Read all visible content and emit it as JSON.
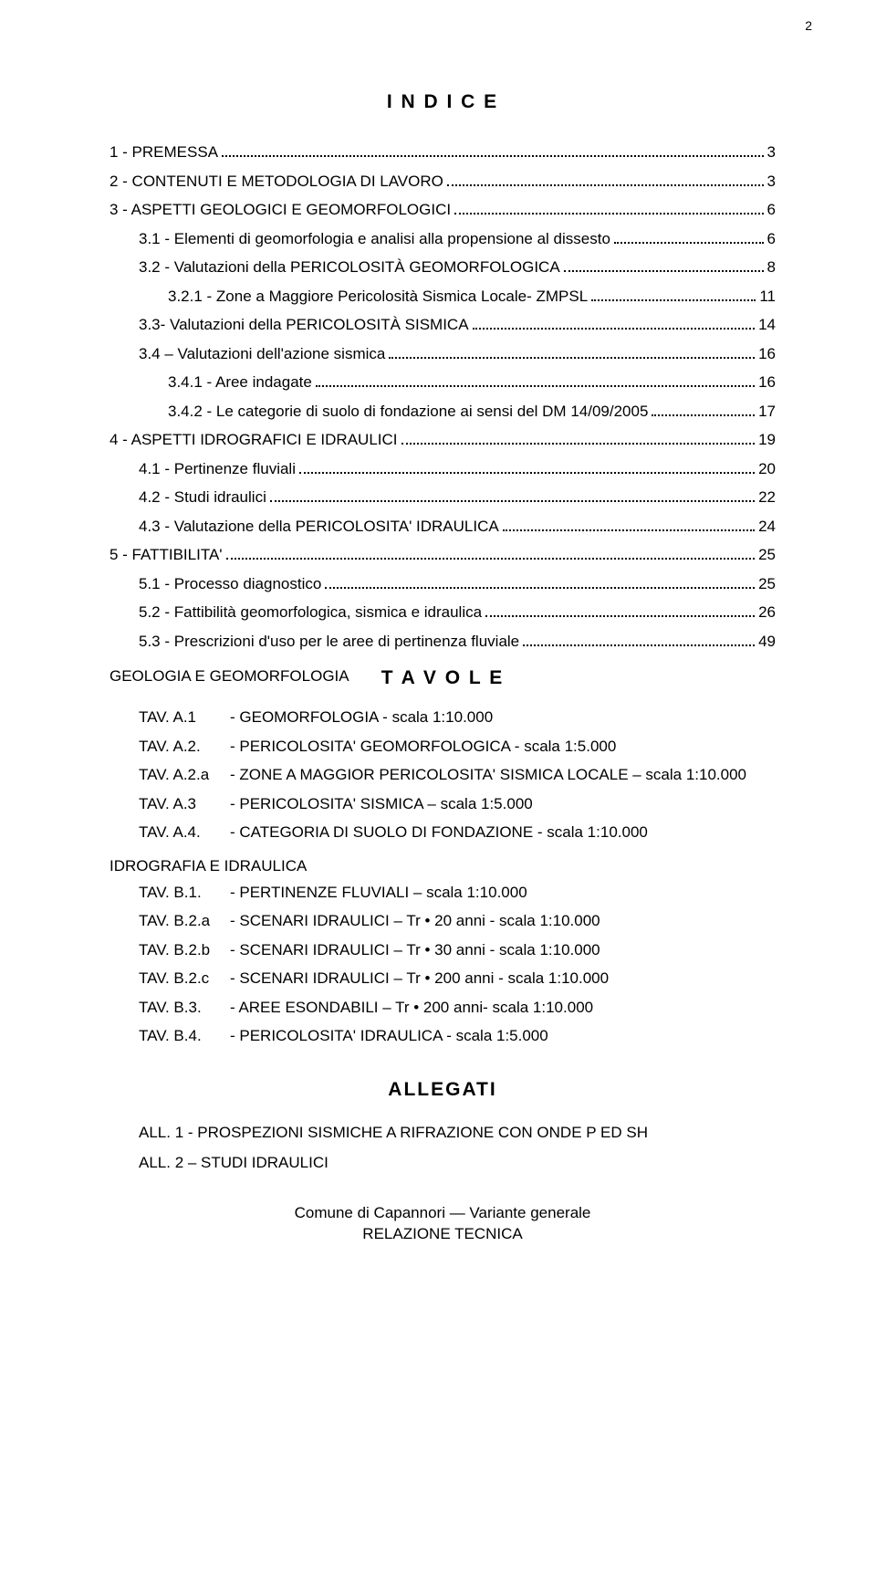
{
  "page_number": "2",
  "titles": {
    "indice": "I N D I C E",
    "tavole": "T A V O L E",
    "allegati": "ALLEGATI"
  },
  "toc": [
    {
      "label": "1 - PREMESSA",
      "page": "3",
      "indent": 0
    },
    {
      "label": "2 - CONTENUTI E  METODOLOGIA DI LAVORO",
      "page": "3",
      "indent": 0
    },
    {
      "label": "3 - ASPETTI GEOLOGICI E GEOMORFOLOGICI",
      "page": "6",
      "indent": 0
    },
    {
      "label": "3.1 - Elementi di geomorfologia e analisi alla propensione al dissesto",
      "page": "6",
      "indent": 1
    },
    {
      "label": "3.2 - Valutazioni della PERICOLOSITÀ GEOMORFOLOGICA",
      "page": "8",
      "indent": 1
    },
    {
      "label": "3.2.1 - Zone a Maggiore Pericolosità Sismica Locale- ZMPSL",
      "page": "11",
      "indent": 2
    },
    {
      "label": "3.3- Valutazioni della PERICOLOSITÀ SISMICA",
      "page": "14",
      "indent": 1
    },
    {
      "label": "3.4 – Valutazioni dell'azione sismica",
      "page": "16",
      "indent": 1
    },
    {
      "label": "3.4.1 - Aree indagate",
      "page": "16",
      "indent": 2
    },
    {
      "label": "3.4.2 - Le categorie di suolo di fondazione ai sensi del DM  14/09/2005",
      "page": "17",
      "indent": 2
    },
    {
      "label": "4 - ASPETTI IDROGRAFICI E IDRAULICI",
      "page": "19",
      "indent": 0
    },
    {
      "label": "4.1 - Pertinenze fluviali",
      "page": "20",
      "indent": 1
    },
    {
      "label": "4.2 - Studi idraulici",
      "page": "22",
      "indent": 1
    },
    {
      "label": "4.3 - Valutazione della PERICOLOSITA' IDRAULICA",
      "page": "24",
      "indent": 1
    },
    {
      "label": "5 - FATTIBILITA'",
      "page": "25",
      "indent": 0
    },
    {
      "label": "5.1 - Processo diagnostico",
      "page": "25",
      "indent": 1
    },
    {
      "label": "5.2 - Fattibilità geomorfologica, sismica e idraulica",
      "page": "26",
      "indent": 1
    },
    {
      "label": "5.3 - Prescrizioni d'uso per le aree di pertinenza fluviale",
      "page": "49",
      "indent": 1
    }
  ],
  "tavole": {
    "group1_title": "GEOLOGIA E GEOMORFOLOGIA",
    "group1": [
      {
        "code": "TAV. A.1",
        "desc": "- GEOMORFOLOGIA - scala 1:10.000"
      },
      {
        "code": "TAV. A.2.",
        "desc": "- PERICOLOSITA' GEOMORFOLOGICA - scala 1:5.000"
      },
      {
        "code": "TAV. A.2.a",
        "desc": "- ZONE A MAGGIOR PERICOLOSITA' SISMICA LOCALE – scala 1:10.000"
      },
      {
        "code": "TAV. A.3",
        "desc": "- PERICOLOSITA' SISMICA – scala 1:5.000"
      },
      {
        "code": "TAV. A.4.",
        "desc": "- CATEGORIA DI SUOLO DI FONDAZIONE - scala 1:10.000"
      }
    ],
    "group2_title": "IDROGRAFIA E IDRAULICA",
    "group2": [
      {
        "code": "TAV. B.1.",
        "desc": "- PERTINENZE FLUVIALI – scala 1:10.000"
      },
      {
        "code": "TAV. B.2.a",
        "desc": "- SCENARI IDRAULICI – Tr •  20 anni - scala 1:10.000"
      },
      {
        "code": "TAV. B.2.b",
        "desc": "- SCENARI IDRAULICI – Tr •  30 anni - scala 1:10.000"
      },
      {
        "code": "TAV. B.2.c",
        "desc": "- SCENARI IDRAULICI – Tr •  200 anni - scala 1:10.000"
      },
      {
        "code": "TAV. B.3.",
        "desc": "- AREE ESONDABILI – Tr •  200 anni- scala 1:10.000"
      },
      {
        "code": "TAV. B.4.",
        "desc": "- PERICOLOSITA' IDRAULICA - scala 1:5.000"
      }
    ]
  },
  "allegati": [
    "ALL. 1 - PROSPEZIONI SISMICHE A RIFRAZIONE CON ONDE P ED SH",
    "ALL. 2 – STUDI IDRAULICI"
  ],
  "footer": {
    "line1": "Comune di Capannori — Variante generale",
    "line2": "RELAZIONE TECNICA"
  }
}
